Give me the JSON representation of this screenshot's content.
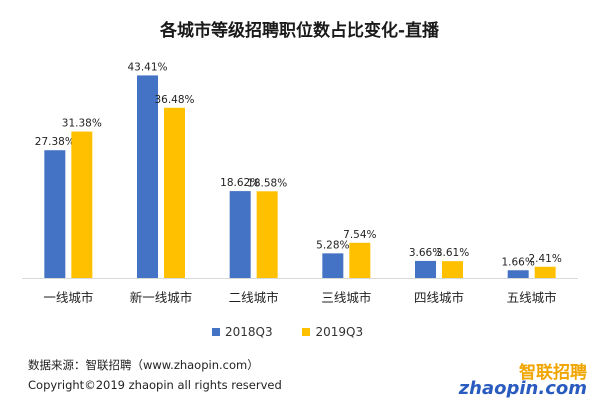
{
  "title": "各城市等级招聘职位数占比变化-直播",
  "chart_data": {
    "type": "bar",
    "title": "各城市等级招聘职位数占比变化-直播",
    "categories": [
      "一线城市",
      "新一线城市",
      "二线城市",
      "三线城市",
      "四线城市",
      "五线城市"
    ],
    "series": [
      {
        "name": "2018Q3",
        "values": [
          27.38,
          43.41,
          18.62,
          5.28,
          3.66,
          1.66
        ],
        "labels": [
          "27.38%",
          "43.41%",
          "18.62%",
          "5.28%",
          "3.66%",
          "1.66%"
        ],
        "color": "#4472c4"
      },
      {
        "name": "2019Q3",
        "values": [
          31.38,
          36.48,
          18.58,
          7.54,
          3.61,
          2.41
        ],
        "labels": [
          "31.38%",
          "36.48%",
          "18.58%",
          "7.54%",
          "3.61%",
          "2.41%"
        ],
        "color": "#ffc000"
      }
    ],
    "ylim": [
      0,
      45
    ],
    "grid": false,
    "legend": "bottom"
  },
  "footer": {
    "source": "数据来源：智联招聘（www.zhaopin.com）",
    "copyright": "Copyright©2019 zhaopin all rights reserved"
  },
  "logo": {
    "cn": "智联招聘",
    "en": "zhaopin.com"
  }
}
